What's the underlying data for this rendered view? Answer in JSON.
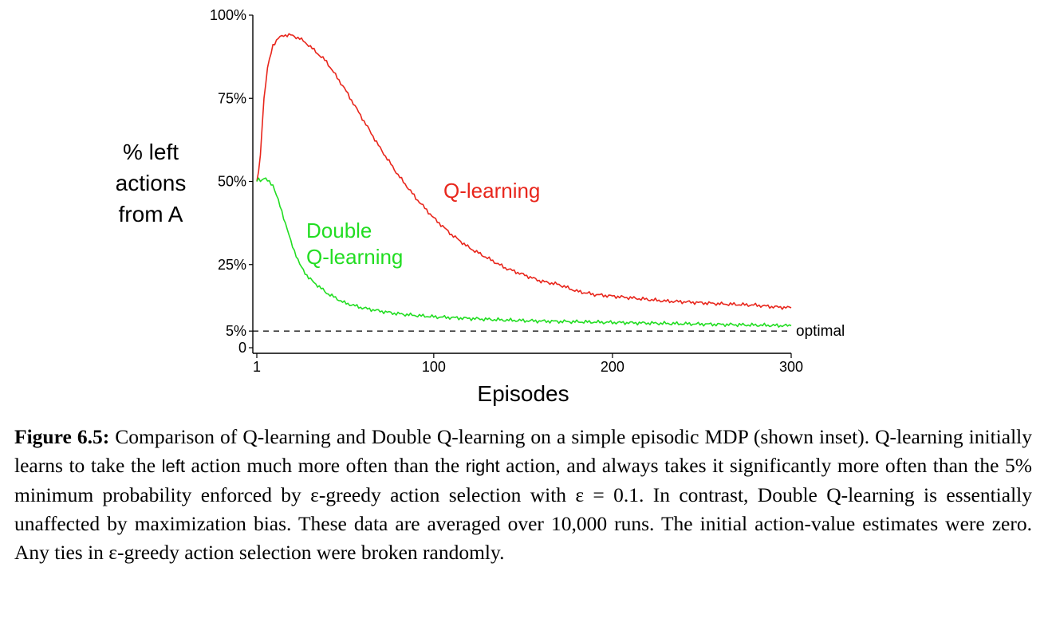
{
  "chart_data": {
    "type": "line",
    "ylabel_lines": [
      "% left",
      "actions",
      "from A"
    ],
    "xlabel": "Episodes",
    "xlim": [
      1,
      300
    ],
    "ylim": [
      0,
      100
    ],
    "x_ticks": [
      {
        "value": 1,
        "label": "1"
      },
      {
        "value": 100,
        "label": "100"
      },
      {
        "value": 200,
        "label": "200"
      },
      {
        "value": 300,
        "label": "300"
      }
    ],
    "y_ticks": [
      {
        "value": 0,
        "label": "0"
      },
      {
        "value": 5,
        "label": "5%"
      },
      {
        "value": 25,
        "label": "25%"
      },
      {
        "value": 50,
        "label": "50%"
      },
      {
        "value": 75,
        "label": "75%"
      },
      {
        "value": 100,
        "label": "100%"
      }
    ],
    "reference_line": {
      "value": 5,
      "label": "optimal",
      "style": "dashed"
    },
    "series": [
      {
        "name": "Q-learning",
        "color": "#e8261c",
        "label_lines": [
          "Q-learning"
        ],
        "x": [
          1,
          2,
          3,
          5,
          7,
          10,
          13,
          16,
          20,
          25,
          30,
          40,
          50,
          60,
          70,
          80,
          90,
          100,
          110,
          120,
          130,
          140,
          150,
          160,
          170,
          180,
          190,
          200,
          210,
          220,
          230,
          240,
          250,
          260,
          270,
          280,
          290,
          300
        ],
        "y": [
          50,
          53,
          58,
          75,
          84,
          91,
          93,
          94,
          94,
          93,
          91,
          86,
          78,
          69,
          60,
          52,
          45,
          39,
          34,
          30,
          27,
          24,
          22,
          20,
          19,
          17,
          16,
          15.5,
          15,
          14.5,
          14,
          13.8,
          13.5,
          13.2,
          13,
          12.8,
          12.3,
          12
        ]
      },
      {
        "name": "Double Q-learning",
        "color": "#22dd22",
        "label_lines": [
          "Double",
          "Q-learning"
        ],
        "x": [
          1,
          2,
          3,
          5,
          10,
          15,
          20,
          25,
          30,
          40,
          50,
          60,
          70,
          80,
          90,
          100,
          120,
          140,
          160,
          180,
          200,
          220,
          240,
          260,
          280,
          300
        ],
        "y": [
          50,
          51,
          50,
          51,
          49,
          41,
          32,
          25,
          21,
          16.5,
          13.5,
          12,
          11,
          10.2,
          9.7,
          9.3,
          8.8,
          8.3,
          8,
          7.8,
          7.6,
          7.4,
          7.2,
          7,
          6.8,
          6.6
        ]
      }
    ],
    "grid": false,
    "legend": "none"
  },
  "caption": {
    "figure_label": "Figure 6.5:",
    "part1": " Comparison of Q-learning and Double Q-learning on a simple episodic MDP (shown inset). Q-learning initially learns to take the ",
    "left_word": "left",
    "part2": " action much more often than the ",
    "right_word": "right",
    "part3": " action, and always takes it significantly more often than the 5% minimum probability enforced by ε-greedy action selection with ε = 0.1. In contrast, Double Q-learning is essentially unaffected by maximization bias. These data are averaged over 10,000 runs. The initial action-value estimates were zero. Any ties in ε-greedy action selection were broken randomly."
  }
}
